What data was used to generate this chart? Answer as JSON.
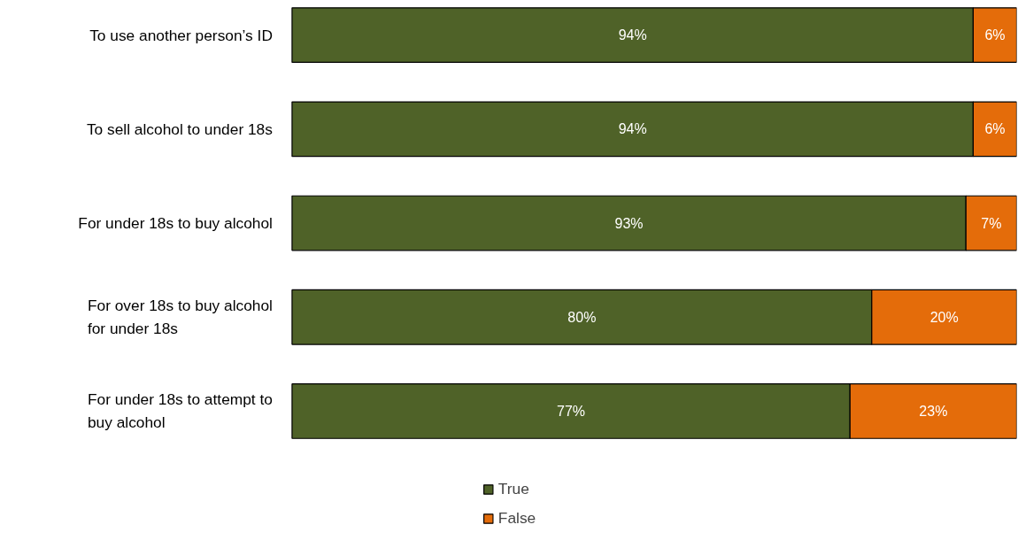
{
  "chart_data": {
    "type": "bar",
    "orientation": "horizontal",
    "stacked": true,
    "categories": [
      "To use another person’s ID",
      "To sell alcohol to under 18s",
      "For under 18s to buy alcohol",
      "For over 18s to buy alcohol for under 18s",
      "For under 18s to attempt to buy alcohol"
    ],
    "series": [
      {
        "name": "True",
        "color": "#4f6228",
        "values": [
          94,
          94,
          93,
          80,
          77
        ],
        "value_labels": [
          "94%",
          "94%",
          "93%",
          "80%",
          "77%"
        ]
      },
      {
        "name": "False",
        "color": "#e46c0a",
        "values": [
          6,
          6,
          7,
          20,
          23
        ],
        "value_labels": [
          "6%",
          "6%",
          "7%",
          "20%",
          "23%"
        ]
      }
    ],
    "legend": "bottom",
    "tick_labels": "y"
  }
}
